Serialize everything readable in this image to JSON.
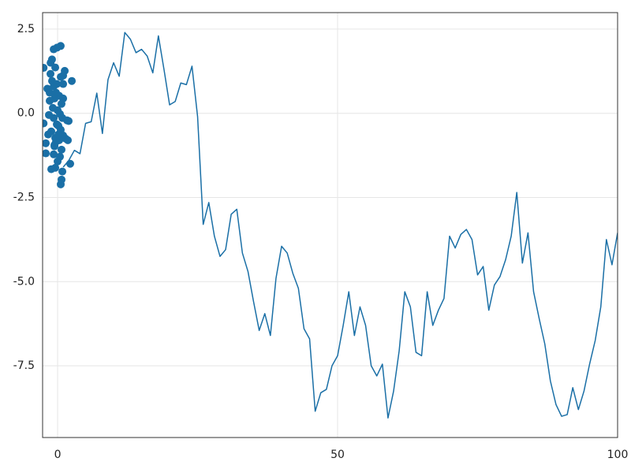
{
  "chart_data": {
    "type": "line",
    "xlim": [
      -2.68,
      100
    ],
    "ylim": [
      -9.63,
      2.99
    ],
    "xticks": [
      0,
      50,
      100
    ],
    "yticks": [
      2.5,
      {
        "value": 0,
        "label": "0.0"
      },
      -2.5,
      {
        "value": -5,
        "label": "-5.0"
      },
      -7.5
    ],
    "grid": true,
    "series": [
      {
        "type": "scatter",
        "color": "#1a6fa6",
        "x": [
          -2.5,
          -2.5,
          -0.7,
          0.55,
          -0.1,
          -1,
          -1.25,
          -0.42,
          1.27,
          -1.27,
          2.54,
          -0.99,
          -1.83,
          -1.41,
          -0.28,
          0.56,
          0.99,
          0.28,
          0.99,
          -0.56,
          -1.55,
          -0.7,
          0,
          0.42,
          0.85,
          1.69,
          1.97,
          -0.14,
          -1.13,
          -0.42,
          0.99,
          1.41,
          1.83,
          0.28,
          -2.11,
          -0.56,
          0.7,
          -0.7,
          0.42,
          0,
          -1.13,
          -0.42,
          0.85,
          0.7,
          0.56,
          2.25,
          -0.56,
          -2.11,
          -1.69,
          0.14,
          0.7,
          -0.85,
          -1.41,
          -0.14,
          0.99,
          -0.7,
          -0.28,
          0.56,
          0.14
        ],
        "values": [
          1.35,
          -0.3,
          1.9,
          2.0,
          1.95,
          1.6,
          1.5,
          1.36,
          1.26,
          1.17,
          0.96,
          0.96,
          0.73,
          0.61,
          0.61,
          1.08,
          0.87,
          0.52,
          0.44,
          0.44,
          -0.05,
          -0.14,
          0.09,
          -0.02,
          -0.14,
          -0.21,
          -0.23,
          -0.33,
          -0.54,
          -0.73,
          -0.66,
          -0.75,
          -0.8,
          -0.8,
          -0.89,
          -0.94,
          -1.08,
          -1.22,
          -1.29,
          -1.43,
          -1.66,
          -1.62,
          -1.73,
          -1.97,
          -2.11,
          -1.5,
          -0.98,
          -1.19,
          -0.63,
          -0.37,
          0.28,
          0.16,
          0.37,
          0.87,
          1.12,
          0.8,
          -0.84,
          -0.49,
          -0.63
        ]
      },
      {
        "type": "line",
        "color": "#1a6fa6",
        "x": [
          1,
          2,
          3,
          4,
          5,
          6,
          7,
          8,
          9,
          10,
          11,
          12,
          13,
          14,
          15,
          16,
          17,
          18,
          19,
          20,
          21,
          22,
          23,
          24,
          25,
          26,
          27,
          28,
          29,
          30,
          31,
          32,
          33,
          34,
          35,
          36,
          37,
          38,
          39,
          40,
          41,
          42,
          43,
          44,
          45,
          46,
          47,
          48,
          49,
          50,
          51,
          52,
          53,
          54,
          55,
          56,
          57,
          58,
          59,
          60,
          61,
          62,
          63,
          64,
          65,
          66,
          67,
          68,
          69,
          70,
          71,
          72,
          73,
          74,
          75,
          76,
          77,
          78,
          79,
          80,
          81,
          82,
          83,
          84,
          85,
          86,
          87,
          88,
          89,
          90,
          91,
          92,
          93,
          94,
          95,
          96,
          97,
          98,
          99,
          100
        ],
        "values": [
          -1.6,
          -1.4,
          -1.1,
          -1.2,
          -0.3,
          -0.25,
          0.6,
          -0.6,
          1.0,
          1.5,
          1.1,
          2.4,
          2.2,
          1.8,
          1.9,
          1.7,
          1.2,
          2.3,
          1.3,
          0.25,
          0.35,
          0.9,
          0.85,
          1.4,
          -0.1,
          -3.3,
          -2.65,
          -3.65,
          -4.25,
          -4.05,
          -3.0,
          -2.85,
          -4.15,
          -4.7,
          -5.6,
          -6.45,
          -5.95,
          -6.6,
          -4.9,
          -3.95,
          -4.15,
          -4.75,
          -5.2,
          -6.4,
          -6.7,
          -8.85,
          -8.3,
          -8.2,
          -7.5,
          -7.2,
          -6.3,
          -5.3,
          -6.6,
          -5.75,
          -6.3,
          -7.5,
          -7.8,
          -7.45,
          -9.05,
          -8.25,
          -7.05,
          -5.3,
          -5.75,
          -7.1,
          -7.2,
          -5.3,
          -6.3,
          -5.85,
          -5.5,
          -3.65,
          -4.0,
          -3.6,
          -3.45,
          -3.75,
          -4.8,
          -4.55,
          -5.85,
          -5.1,
          -4.85,
          -4.35,
          -3.65,
          -2.35,
          -4.45,
          -3.55,
          -5.3,
          -6.1,
          -6.85,
          -7.95,
          -8.65,
          -9.0,
          -8.95,
          -8.15,
          -8.8,
          -8.25,
          -7.45,
          -6.75,
          -5.75,
          -3.75,
          -4.5,
          -3.55
        ]
      }
    ]
  }
}
